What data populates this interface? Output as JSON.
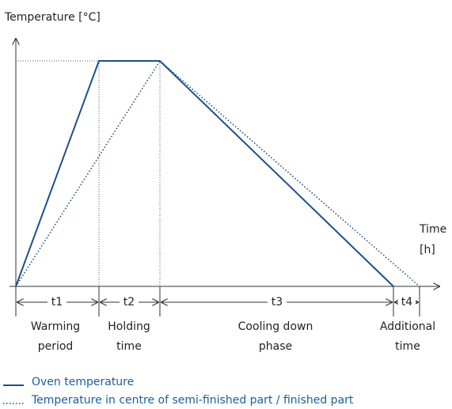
{
  "axis": {
    "y_label": "Temperature [°C]",
    "x_label": [
      "Time",
      "[h]"
    ]
  },
  "segments": [
    {
      "label": "t1",
      "phase": [
        "Warming",
        "period"
      ]
    },
    {
      "label": "t2",
      "phase": [
        "Holding",
        "time"
      ]
    },
    {
      "label": "t3",
      "phase": [
        "Cooling down",
        "phase"
      ]
    },
    {
      "label": "t4",
      "phase": [
        "Additional",
        "time"
      ]
    }
  ],
  "legend": [
    "Oven temperature",
    "Temperature in centre of semi-finished part / finished part"
  ]
}
